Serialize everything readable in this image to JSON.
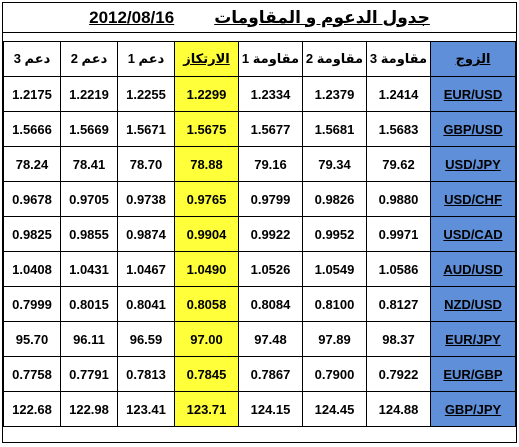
{
  "title": {
    "label": "جدول الدعوم و المقاومات",
    "date": "2012/08/16"
  },
  "columns": [
    "دعم 3",
    "دعم 2",
    "دعم 1",
    "الارتكاز",
    "مقاومة 1",
    "مقاومة 2",
    "مقاومة 3",
    "الزوج"
  ],
  "rows": [
    {
      "s3": "1.2175",
      "s2": "1.2219",
      "s1": "1.2255",
      "pivot": "1.2299",
      "r1": "1.2334",
      "r2": "1.2379",
      "r3": "1.2414",
      "pair": "EUR/USD"
    },
    {
      "s3": "1.5666",
      "s2": "1.5669",
      "s1": "1.5671",
      "pivot": "1.5675",
      "r1": "1.5677",
      "r2": "1.5681",
      "r3": "1.5683",
      "pair": "GBP/USD"
    },
    {
      "s3": "78.24",
      "s2": "78.41",
      "s1": "78.70",
      "pivot": "78.88",
      "r1": "79.16",
      "r2": "79.34",
      "r3": "79.62",
      "pair": "USD/JPY"
    },
    {
      "s3": "0.9678",
      "s2": "0.9705",
      "s1": "0.9738",
      "pivot": "0.9765",
      "r1": "0.9799",
      "r2": "0.9826",
      "r3": "0.9880",
      "pair": "USD/CHF"
    },
    {
      "s3": "0.9825",
      "s2": "0.9855",
      "s1": "0.9874",
      "pivot": "0.9904",
      "r1": "0.9922",
      "r2": "0.9952",
      "r3": "0.9971",
      "pair": "USD/CAD"
    },
    {
      "s3": "1.0408",
      "s2": "1.0431",
      "s1": "1.0467",
      "pivot": "1.0490",
      "r1": "1.0526",
      "r2": "1.0549",
      "r3": "1.0586",
      "pair": "AUD/USD"
    },
    {
      "s3": "0.7999",
      "s2": "0.8015",
      "s1": "0.8041",
      "pivot": "0.8058",
      "r1": "0.8084",
      "r2": "0.8100",
      "r3": "0.8127",
      "pair": "NZD/USD"
    },
    {
      "s3": "95.70",
      "s2": "96.11",
      "s1": "96.59",
      "pivot": "97.00",
      "r1": "97.48",
      "r2": "97.89",
      "r3": "98.37",
      "pair": "EUR/JPY"
    },
    {
      "s3": "0.7758",
      "s2": "0.7791",
      "s1": "0.7813",
      "pivot": "0.7845",
      "r1": "0.7867",
      "r2": "0.7900",
      "r3": "0.7922",
      "pair": "EUR/GBP"
    },
    {
      "s3": "122.68",
      "s2": "122.98",
      "s1": "123.41",
      "pivot": "123.71",
      "r1": "124.15",
      "r2": "124.45",
      "r3": "124.88",
      "pair": "GBP/JPY"
    }
  ],
  "colors": {
    "pivot_highlight": "#ffff3a",
    "pair_column": "#5f8fd8"
  }
}
